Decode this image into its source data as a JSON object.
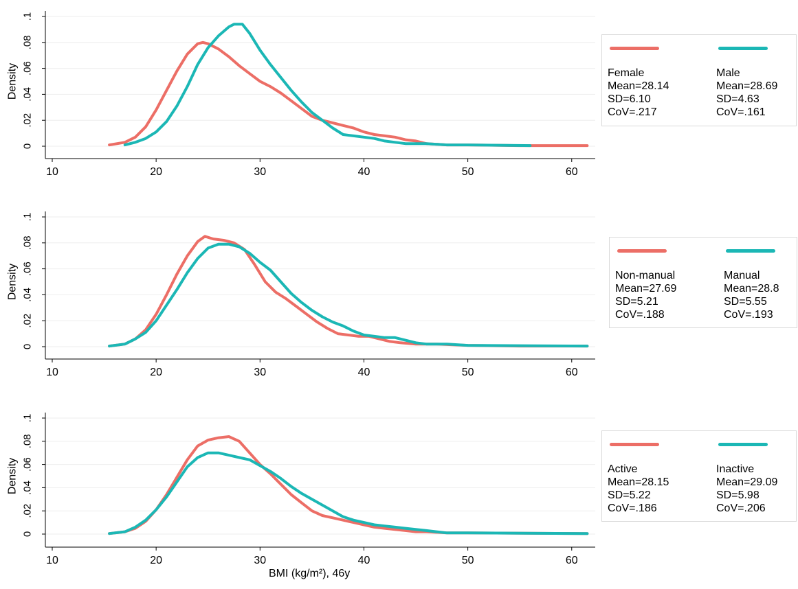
{
  "colors": {
    "red": "#ec6e66",
    "teal": "#1bb7b5",
    "axis": "#000000",
    "grid": "#eeeeee"
  },
  "chart_data": [
    {
      "type": "line",
      "xlabel": "",
      "ylabel": "Density",
      "xlim": [
        10,
        62
      ],
      "ylim": [
        0,
        0.1
      ],
      "xticks": [
        "10",
        "20",
        "30",
        "40",
        "50",
        "60"
      ],
      "yticks": [
        "0",
        ".02",
        ".04",
        ".06",
        ".08",
        ".1"
      ],
      "legend_position": "right",
      "series": [
        {
          "name": "Female",
          "color": "#ec6e66",
          "stats": [
            "Female",
            "Mean=28.14",
            "SD=6.10",
            "CoV=.217"
          ],
          "points": [
            [
              15.5,
              0.001
            ],
            [
              17,
              0.003
            ],
            [
              18,
              0.007
            ],
            [
              19,
              0.015
            ],
            [
              20,
              0.028
            ],
            [
              21,
              0.043
            ],
            [
              22,
              0.058
            ],
            [
              23,
              0.071
            ],
            [
              24,
              0.079
            ],
            [
              24.5,
              0.08
            ],
            [
              25,
              0.079
            ],
            [
              26,
              0.075
            ],
            [
              27,
              0.069
            ],
            [
              28,
              0.062
            ],
            [
              29,
              0.056
            ],
            [
              30,
              0.05
            ],
            [
              31,
              0.046
            ],
            [
              32,
              0.041
            ],
            [
              33,
              0.035
            ],
            [
              34,
              0.029
            ],
            [
              35,
              0.023
            ],
            [
              36,
              0.02
            ],
            [
              37,
              0.018
            ],
            [
              38,
              0.016
            ],
            [
              39,
              0.014
            ],
            [
              40,
              0.011
            ],
            [
              41,
              0.009
            ],
            [
              42,
              0.008
            ],
            [
              43,
              0.007
            ],
            [
              44,
              0.005
            ],
            [
              45,
              0.004
            ],
            [
              46,
              0.002
            ],
            [
              48,
              0.001
            ],
            [
              50,
              0.001
            ],
            [
              55,
              0.0005
            ],
            [
              61.5,
              0.0005
            ]
          ]
        },
        {
          "name": "Male",
          "color": "#1bb7b5",
          "stats": [
            "Male",
            "Mean=28.69",
            "SD=4.63",
            "CoV=.161"
          ],
          "points": [
            [
              17,
              0.001
            ],
            [
              18,
              0.003
            ],
            [
              19,
              0.006
            ],
            [
              20,
              0.011
            ],
            [
              21,
              0.019
            ],
            [
              22,
              0.031
            ],
            [
              23,
              0.046
            ],
            [
              24,
              0.063
            ],
            [
              25,
              0.076
            ],
            [
              26,
              0.085
            ],
            [
              27,
              0.092
            ],
            [
              27.5,
              0.094
            ],
            [
              28.3,
              0.094
            ],
            [
              29,
              0.087
            ],
            [
              30,
              0.074
            ],
            [
              31,
              0.063
            ],
            [
              32,
              0.053
            ],
            [
              33,
              0.043
            ],
            [
              34,
              0.034
            ],
            [
              35,
              0.026
            ],
            [
              36,
              0.02
            ],
            [
              37,
              0.014
            ],
            [
              38,
              0.009
            ],
            [
              39,
              0.008
            ],
            [
              40,
              0.007
            ],
            [
              41,
              0.006
            ],
            [
              42,
              0.004
            ],
            [
              43,
              0.003
            ],
            [
              44,
              0.002
            ],
            [
              46,
              0.002
            ],
            [
              48,
              0.001
            ],
            [
              50,
              0.001
            ],
            [
              56,
              0.0005
            ]
          ]
        }
      ]
    },
    {
      "type": "line",
      "xlabel": "",
      "ylabel": "Density",
      "xlim": [
        10,
        62
      ],
      "ylim": [
        0,
        0.1
      ],
      "xticks": [
        "10",
        "20",
        "30",
        "40",
        "50",
        "60"
      ],
      "yticks": [
        "0",
        ".02",
        ".04",
        ".06",
        ".08",
        ".1"
      ],
      "legend_position": "right",
      "series": [
        {
          "name": "Non-manual",
          "color": "#ec6e66",
          "stats": [
            "Non-manual",
            "Mean=27.69",
            "SD=5.21",
            "CoV=.188"
          ],
          "points": [
            [
              15.5,
              0.0005
            ],
            [
              17,
              0.002
            ],
            [
              18,
              0.006
            ],
            [
              19,
              0.013
            ],
            [
              20,
              0.025
            ],
            [
              21,
              0.04
            ],
            [
              22,
              0.056
            ],
            [
              23,
              0.07
            ],
            [
              24,
              0.081
            ],
            [
              24.7,
              0.085
            ],
            [
              25.5,
              0.083
            ],
            [
              26.5,
              0.082
            ],
            [
              27.5,
              0.08
            ],
            [
              28.5,
              0.075
            ],
            [
              29.5,
              0.063
            ],
            [
              30.5,
              0.05
            ],
            [
              31.5,
              0.042
            ],
            [
              32.5,
              0.037
            ],
            [
              33.5,
              0.031
            ],
            [
              34.5,
              0.025
            ],
            [
              35.5,
              0.019
            ],
            [
              36.5,
              0.014
            ],
            [
              37.5,
              0.01
            ],
            [
              38.5,
              0.009
            ],
            [
              39.5,
              0.008
            ],
            [
              40.5,
              0.008
            ],
            [
              41.5,
              0.006
            ],
            [
              42.5,
              0.004
            ],
            [
              43.5,
              0.003
            ],
            [
              45,
              0.002
            ],
            [
              47,
              0.002
            ],
            [
              50,
              0.001
            ],
            [
              55,
              0.0005
            ],
            [
              61.5,
              0.0005
            ]
          ]
        },
        {
          "name": "Manual",
          "color": "#1bb7b5",
          "stats": [
            "Manual",
            "Mean=28.8",
            "SD=5.55",
            "CoV=.193"
          ],
          "points": [
            [
              15.5,
              0.0005
            ],
            [
              17,
              0.002
            ],
            [
              18,
              0.006
            ],
            [
              19,
              0.011
            ],
            [
              20,
              0.02
            ],
            [
              21,
              0.032
            ],
            [
              22,
              0.044
            ],
            [
              23,
              0.057
            ],
            [
              24,
              0.068
            ],
            [
              25,
              0.076
            ],
            [
              26,
              0.079
            ],
            [
              27,
              0.079
            ],
            [
              28,
              0.077
            ],
            [
              29,
              0.072
            ],
            [
              30,
              0.065
            ],
            [
              31,
              0.059
            ],
            [
              32,
              0.05
            ],
            [
              33,
              0.041
            ],
            [
              34,
              0.034
            ],
            [
              35,
              0.028
            ],
            [
              36,
              0.023
            ],
            [
              37,
              0.019
            ],
            [
              38,
              0.016
            ],
            [
              39,
              0.012
            ],
            [
              40,
              0.009
            ],
            [
              41,
              0.008
            ],
            [
              42,
              0.007
            ],
            [
              43,
              0.007
            ],
            [
              44,
              0.005
            ],
            [
              45,
              0.003
            ],
            [
              46,
              0.002
            ],
            [
              48,
              0.002
            ],
            [
              50,
              0.001
            ],
            [
              61.5,
              0.0005
            ]
          ]
        }
      ]
    },
    {
      "type": "line",
      "xlabel": "BMI (kg/m²), 46y",
      "ylabel": "Density",
      "xlim": [
        10,
        62
      ],
      "ylim": [
        0,
        0.1
      ],
      "xticks": [
        "10",
        "20",
        "30",
        "40",
        "50",
        "60"
      ],
      "yticks": [
        "0",
        ".02",
        ".04",
        ".06",
        ".08",
        ".1"
      ],
      "legend_position": "right",
      "series": [
        {
          "name": "Active",
          "color": "#ec6e66",
          "stats": [
            "Active",
            "Mean=28.15",
            "SD=5.22",
            "CoV=.186"
          ],
          "points": [
            [
              15.5,
              0.0005
            ],
            [
              17,
              0.002
            ],
            [
              18,
              0.005
            ],
            [
              19,
              0.011
            ],
            [
              20,
              0.021
            ],
            [
              21,
              0.034
            ],
            [
              22,
              0.049
            ],
            [
              23,
              0.064
            ],
            [
              24,
              0.076
            ],
            [
              25,
              0.081
            ],
            [
              26,
              0.083
            ],
            [
              27,
              0.084
            ],
            [
              28,
              0.08
            ],
            [
              29,
              0.07
            ],
            [
              30,
              0.06
            ],
            [
              31,
              0.052
            ],
            [
              32,
              0.043
            ],
            [
              33,
              0.034
            ],
            [
              34,
              0.027
            ],
            [
              35,
              0.02
            ],
            [
              36,
              0.016
            ],
            [
              37,
              0.014
            ],
            [
              38,
              0.012
            ],
            [
              39,
              0.01
            ],
            [
              40,
              0.008
            ],
            [
              41,
              0.006
            ],
            [
              42,
              0.005
            ],
            [
              43,
              0.004
            ],
            [
              44,
              0.003
            ],
            [
              45,
              0.002
            ],
            [
              46,
              0.002
            ],
            [
              48,
              0.001
            ],
            [
              50,
              0.001
            ],
            [
              61.5,
              0.0005
            ]
          ]
        },
        {
          "name": "Inactive",
          "color": "#1bb7b5",
          "stats": [
            "Inactive",
            "Mean=29.09",
            "SD=5.98",
            "CoV=.206"
          ],
          "points": [
            [
              15.5,
              0.0005
            ],
            [
              17,
              0.002
            ],
            [
              18,
              0.006
            ],
            [
              19,
              0.012
            ],
            [
              20,
              0.021
            ],
            [
              21,
              0.032
            ],
            [
              22,
              0.045
            ],
            [
              23,
              0.058
            ],
            [
              24,
              0.066
            ],
            [
              25,
              0.07
            ],
            [
              26,
              0.07
            ],
            [
              27,
              0.068
            ],
            [
              28,
              0.066
            ],
            [
              29,
              0.064
            ],
            [
              30,
              0.059
            ],
            [
              31,
              0.054
            ],
            [
              32,
              0.048
            ],
            [
              33,
              0.041
            ],
            [
              34,
              0.035
            ],
            [
              35,
              0.03
            ],
            [
              36,
              0.025
            ],
            [
              37,
              0.02
            ],
            [
              38,
              0.015
            ],
            [
              39,
              0.012
            ],
            [
              40,
              0.01
            ],
            [
              41,
              0.008
            ],
            [
              42,
              0.007
            ],
            [
              43,
              0.006
            ],
            [
              44,
              0.005
            ],
            [
              45,
              0.004
            ],
            [
              46,
              0.003
            ],
            [
              47,
              0.002
            ],
            [
              48,
              0.001
            ],
            [
              50,
              0.001
            ],
            [
              61.5,
              0.0005
            ]
          ]
        }
      ]
    }
  ]
}
